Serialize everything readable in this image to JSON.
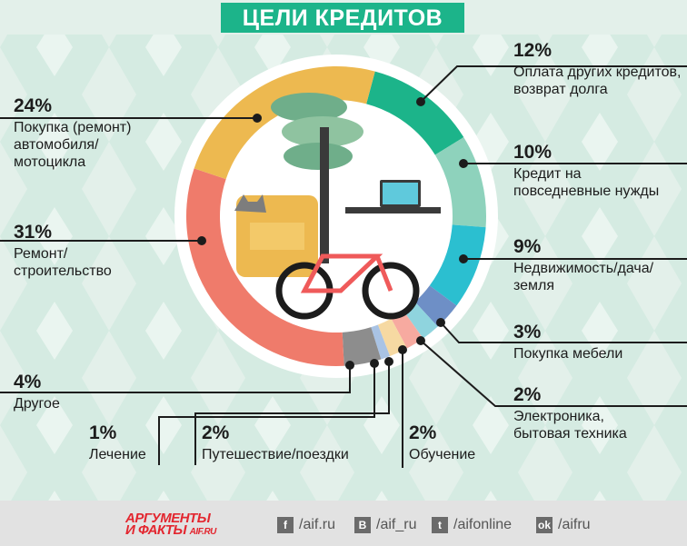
{
  "title": "ЦЕЛИ КРЕДИТОВ",
  "chart_data": {
    "type": "donut",
    "title": "ЦЕЛИ КРЕДИТОВ",
    "unit": "%",
    "slices": [
      {
        "pct": "12%",
        "value": 12,
        "label": "Оплата других кредитов, возврат долга",
        "color": "#1cb48a"
      },
      {
        "pct": "10%",
        "value": 10,
        "label": "Кредит на повседневные нужды",
        "color": "#8ed2bc"
      },
      {
        "pct": "9%",
        "value": 9,
        "label": "Недвижимость/дача/ земля",
        "color": "#2bbfd0"
      },
      {
        "pct": "3%",
        "value": 3,
        "label": "Покупка мебели",
        "color": "#6e8fc6"
      },
      {
        "pct": "2%",
        "value": 2,
        "label": "Электроника, бытовая техника",
        "color": "#8fd4de"
      },
      {
        "pct": "2%",
        "value": 2,
        "label": "Обучение",
        "color": "#f7aaa0"
      },
      {
        "pct": "2%",
        "value": 2,
        "label": "Путешествие/поездки",
        "color": "#f6d9a2"
      },
      {
        "pct": "1%",
        "value": 1,
        "label": "Лечение",
        "color": "#a9c3e4"
      },
      {
        "pct": "4%",
        "value": 4,
        "label": "Другое",
        "color": "#8d8d8d"
      },
      {
        "pct": "31%",
        "value": 31,
        "label": "Ремонт/ строительство",
        "color": "#ef7b6b"
      },
      {
        "pct": "24%",
        "value": 24,
        "label": "Покупка (ремонт) автомобиля/ мотоцикла",
        "color": "#edb950"
      }
    ]
  },
  "footer": {
    "logo": "АРГУМЕНТЫ И ФАКТЫ AIF.RU",
    "socials": [
      {
        "icon": "facebook-icon",
        "glyph": "f",
        "handle": "/aif.ru"
      },
      {
        "icon": "vk-icon",
        "glyph": "B",
        "handle": "/aif_ru"
      },
      {
        "icon": "twitter-icon",
        "glyph": "t",
        "handle": "/aifonline"
      },
      {
        "icon": "odnoklassniki-icon",
        "glyph": "ok",
        "handle": "/aifru"
      }
    ]
  }
}
